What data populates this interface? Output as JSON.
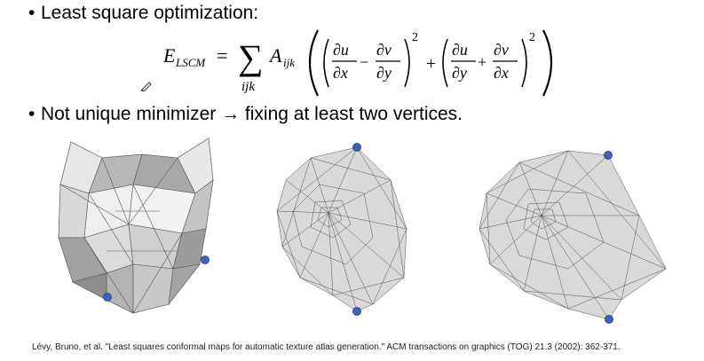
{
  "slide": {
    "bullet1": "Least square optimization:",
    "bullet2": "Not unique minimizer → fixing at least two vertices.",
    "bullet_glyph": "•",
    "formula": {
      "lhs_var": "E",
      "lhs_sub": "LSCM",
      "equals": "=",
      "sum_symbol": "∑",
      "sum_index": "ijk",
      "coef": "A",
      "coef_sub": "ijk",
      "term1_a_num": "∂u",
      "term1_a_den": "∂x",
      "minus": "−",
      "term1_b_num": "∂v",
      "term1_b_den": "∂y",
      "plus": "+",
      "term2_a_num": "∂u",
      "term2_a_den": "∂y",
      "term2_b_num": "∂v",
      "term2_b_den": "∂x",
      "exponent": "2"
    },
    "citation": "Lévy, Bruno, et al. \"Least squares conformal maps for automatic texture atlas generation.\" ACM transactions on graphics (TOG) 21.3 (2002): 362-371.",
    "colors": {
      "mesh_fill": "#d9d9d9",
      "mesh_dark": "#9a9a9a",
      "mesh_edge": "#555555",
      "pin": "#3d63b8"
    }
  }
}
